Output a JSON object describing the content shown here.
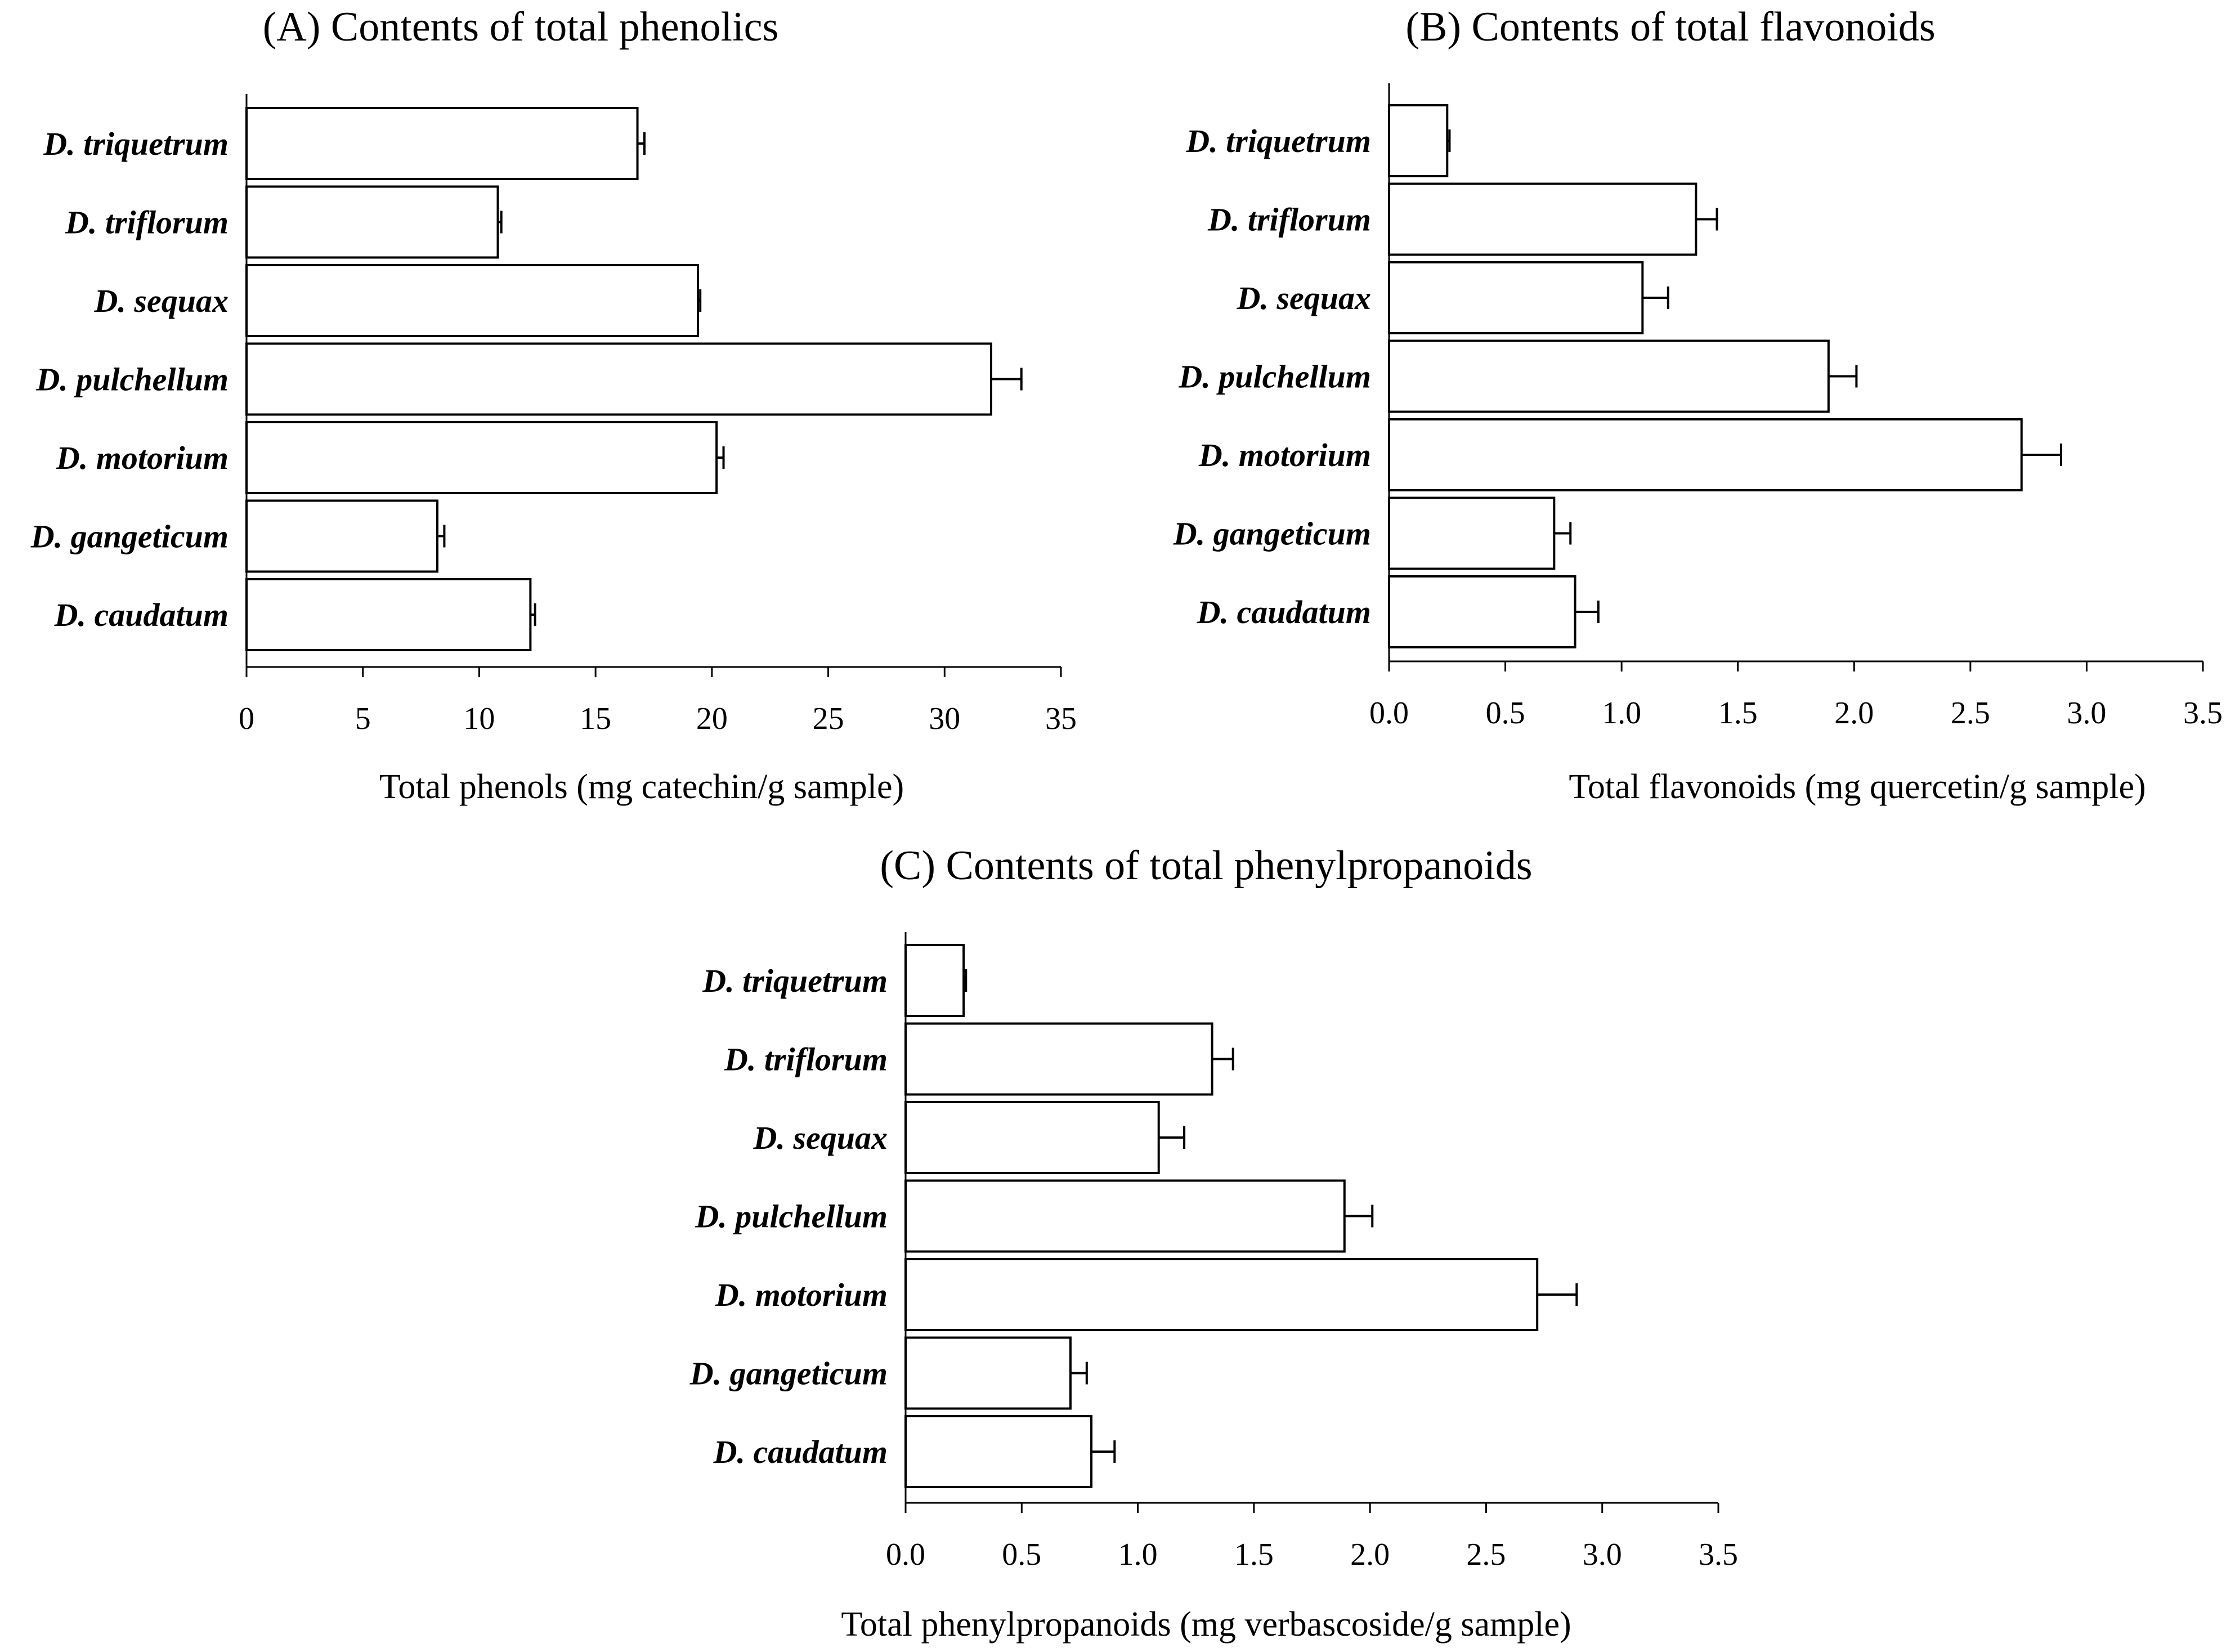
{
  "chart_data": [
    {
      "type": "bar",
      "orientation": "horizontal",
      "title": "(A) Contents of total phenolics",
      "xlabel": "Total phenols (mg catechin/g sample)",
      "ylabel": "",
      "categories": [
        "D. triquetrum",
        "D. triflorum",
        "D. sequax",
        "D. pulchellum",
        "D. motorium",
        "D. gangeticum",
        "D. caudatum"
      ],
      "values": [
        16.8,
        10.8,
        19.4,
        32.0,
        20.2,
        8.2,
        12.2
      ],
      "errors": [
        0.3,
        0.15,
        0.1,
        1.3,
        0.3,
        0.3,
        0.2
      ],
      "xlim": [
        0,
        35
      ],
      "xticks": [
        "0",
        "5",
        "10",
        "15",
        "20",
        "25",
        "30",
        "35"
      ],
      "grid": false,
      "legend": "none"
    },
    {
      "type": "bar",
      "orientation": "horizontal",
      "title": "(B) Contents of total flavonoids",
      "xlabel": "Total flavonoids (mg quercetin/g sample)",
      "ylabel": "",
      "categories": [
        "D. triquetrum",
        "D. triflorum",
        "D. sequax",
        "D. pulchellum",
        "D. motorium",
        "D. gangeticum",
        "D. caudatum"
      ],
      "values": [
        0.25,
        1.32,
        1.09,
        1.89,
        2.72,
        0.71,
        0.8
      ],
      "errors": [
        0.01,
        0.09,
        0.11,
        0.12,
        0.17,
        0.07,
        0.1
      ],
      "xlim": [
        0,
        3.5
      ],
      "xticks": [
        "0.0",
        "0.5",
        "1.0",
        "1.5",
        "2.0",
        "2.5",
        "3.0",
        "3.5"
      ],
      "grid": false,
      "legend": "none"
    },
    {
      "type": "bar",
      "orientation": "horizontal",
      "title": "(C) Contents of total phenylpropanoids",
      "xlabel": "Total phenylpropanoids (mg verbascoside/g sample)",
      "ylabel": "",
      "categories": [
        "D. triquetrum",
        "D. triflorum",
        "D. sequax",
        "D. pulchellum",
        "D. motorium",
        "D. gangeticum",
        "D. caudatum"
      ],
      "values": [
        0.25,
        1.32,
        1.09,
        1.89,
        2.72,
        0.71,
        0.8
      ],
      "errors": [
        0.01,
        0.09,
        0.11,
        0.12,
        0.17,
        0.07,
        0.1
      ],
      "xlim": [
        0,
        3.5
      ],
      "xticks": [
        "0.0",
        "0.5",
        "1.0",
        "1.5",
        "2.0",
        "2.5",
        "3.0",
        "3.5"
      ],
      "grid": false,
      "legend": "none"
    }
  ]
}
